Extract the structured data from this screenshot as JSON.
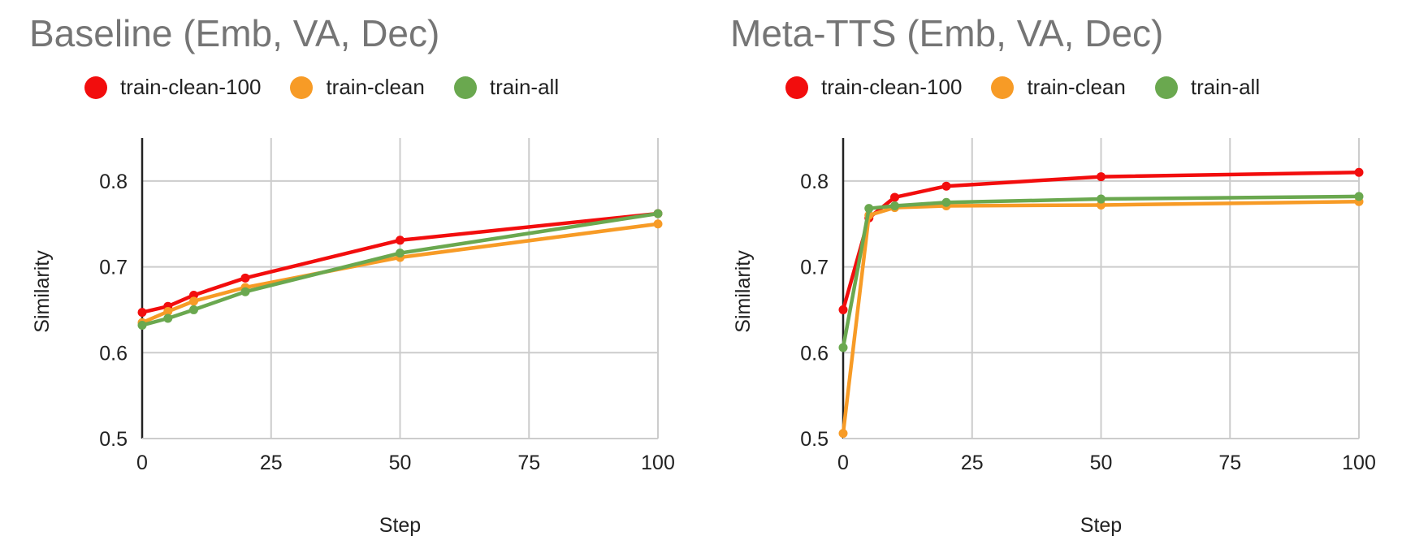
{
  "chart_data": [
    {
      "type": "line",
      "title": "Baseline (Emb, VA, Dec)",
      "xlabel": "Step",
      "ylabel": "Similarity",
      "xlim": [
        0,
        100
      ],
      "ylim": [
        0.5,
        0.85
      ],
      "xticks": [
        0,
        25,
        50,
        75,
        100
      ],
      "yticks": [
        0.5,
        0.6,
        0.7,
        0.8
      ],
      "grid": true,
      "legend_position": "top",
      "x": [
        0,
        5,
        10,
        20,
        50,
        100
      ],
      "series": [
        {
          "name": "train-clean-100",
          "color": "#f20d0d",
          "values": [
            0.647,
            0.654,
            0.667,
            0.687,
            0.731,
            0.762
          ]
        },
        {
          "name": "train-clean",
          "color": "#f79b26",
          "values": [
            0.635,
            0.648,
            0.66,
            0.676,
            0.711,
            0.75
          ]
        },
        {
          "name": "train-all",
          "color": "#6aa84f",
          "values": [
            0.632,
            0.64,
            0.65,
            0.671,
            0.716,
            0.762
          ]
        }
      ]
    },
    {
      "type": "line",
      "title": "Meta-TTS (Emb, VA, Dec)",
      "xlabel": "Step",
      "ylabel": "Similarity",
      "xlim": [
        0,
        100
      ],
      "ylim": [
        0.5,
        0.85
      ],
      "xticks": [
        0,
        25,
        50,
        75,
        100
      ],
      "yticks": [
        0.5,
        0.6,
        0.7,
        0.8
      ],
      "grid": true,
      "legend_position": "top",
      "x": [
        0,
        5,
        10,
        20,
        50,
        100
      ],
      "series": [
        {
          "name": "train-clean-100",
          "color": "#f20d0d",
          "values": [
            0.65,
            0.757,
            0.781,
            0.794,
            0.805,
            0.81
          ]
        },
        {
          "name": "train-clean",
          "color": "#f79b26",
          "values": [
            0.506,
            0.76,
            0.769,
            0.771,
            0.772,
            0.776
          ]
        },
        {
          "name": "train-all",
          "color": "#6aa84f",
          "values": [
            0.606,
            0.768,
            0.771,
            0.775,
            0.779,
            0.782
          ]
        }
      ]
    }
  ]
}
